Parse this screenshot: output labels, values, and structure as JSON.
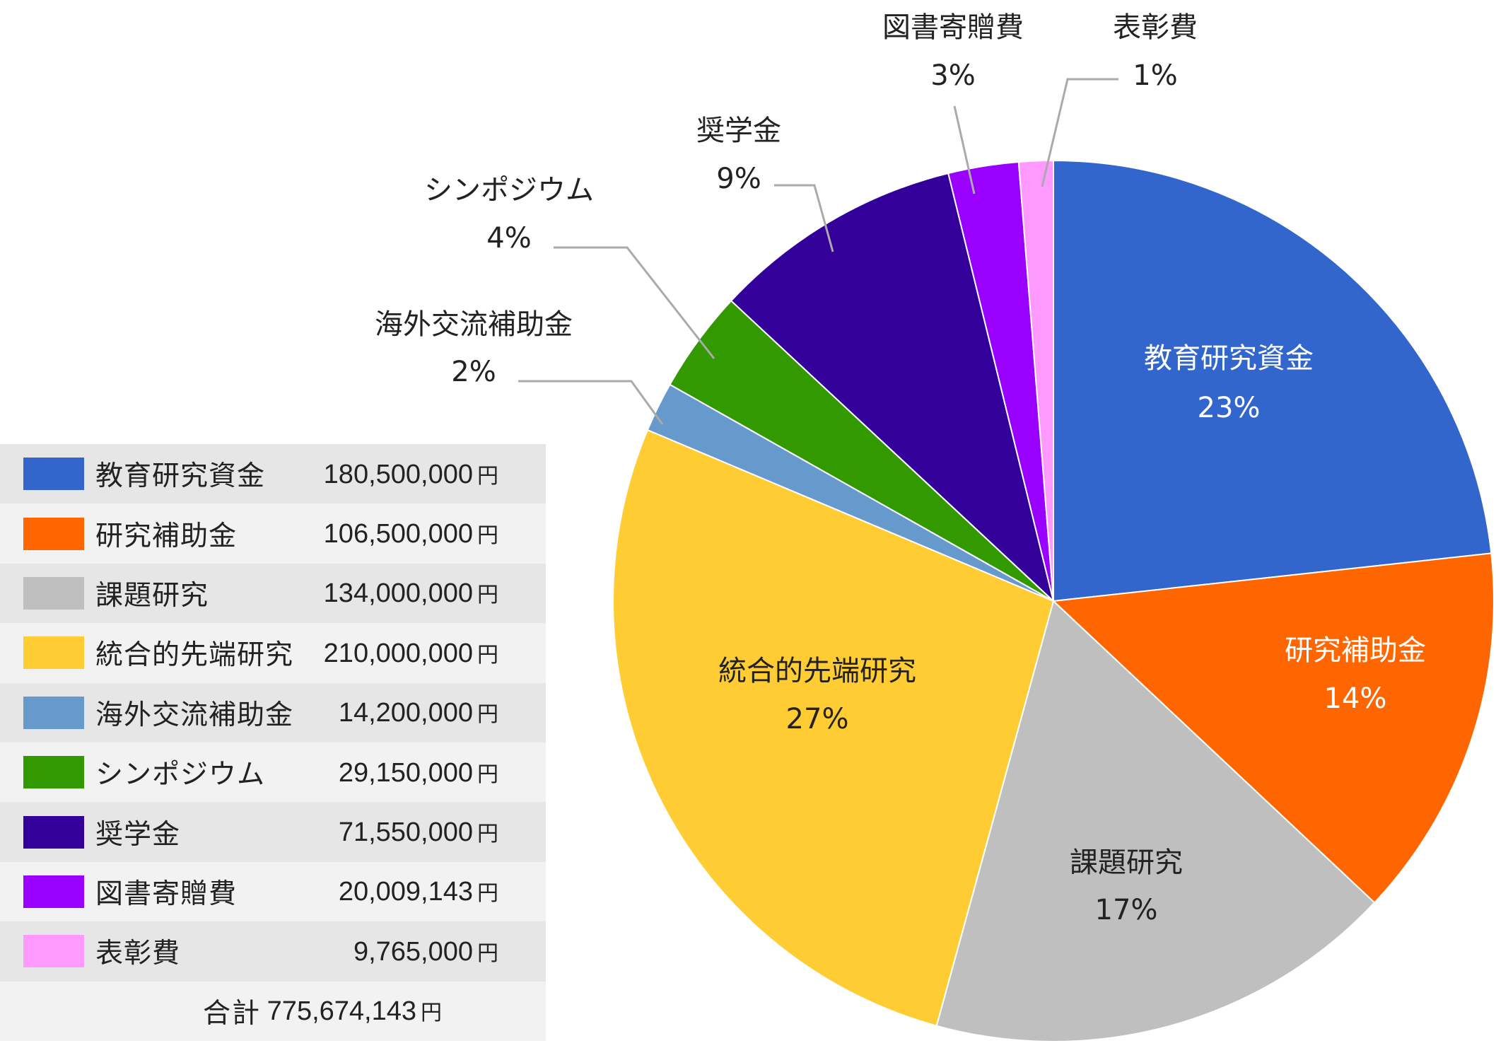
{
  "chart_data": {
    "type": "pie",
    "title": "",
    "unit": "円",
    "slices": [
      {
        "name": "教育研究資金",
        "value": 180500000,
        "amount": "180,500,000",
        "percent_label": "23%",
        "color": "#3366cc",
        "label_color": "#ffffff"
      },
      {
        "name": "研究補助金",
        "value": 106500000,
        "amount": "106,500,000",
        "percent_label": "14%",
        "color": "#ff6600",
        "label_color": "#ffffff"
      },
      {
        "name": "課題研究",
        "value": 134000000,
        "amount": "134,000,000",
        "percent_label": "17%",
        "color": "#bfbfbf",
        "label_color": "#222222"
      },
      {
        "name": "統合的先端研究",
        "value": 210000000,
        "amount": "210,000,000",
        "percent_label": "27%",
        "color": "#ffcc33",
        "label_color": "#222222"
      },
      {
        "name": "海外交流補助金",
        "value": 14200000,
        "amount": "14,200,000",
        "percent_label": "2%",
        "color": "#6699cc",
        "label_color": "#222222"
      },
      {
        "name": "シンポジウム",
        "value": 29150000,
        "amount": "29,150,000",
        "percent_label": "4%",
        "color": "#339900",
        "label_color": "#222222"
      },
      {
        "name": "奨学金",
        "value": 71550000,
        "amount": "71,550,000",
        "percent_label": "9%",
        "color": "#330099",
        "label_color": "#222222"
      },
      {
        "name": "図書寄贈費",
        "value": 20009143,
        "amount": "20,009,143",
        "percent_label": "3%",
        "color": "#9900ff",
        "label_color": "#222222"
      },
      {
        "name": "表彰費",
        "value": 9765000,
        "amount": "9,765,000",
        "percent_label": "1%",
        "color": "#ff99ff",
        "label_color": "#222222"
      }
    ],
    "total_label": "合計",
    "total_amount": "775,674,143"
  }
}
